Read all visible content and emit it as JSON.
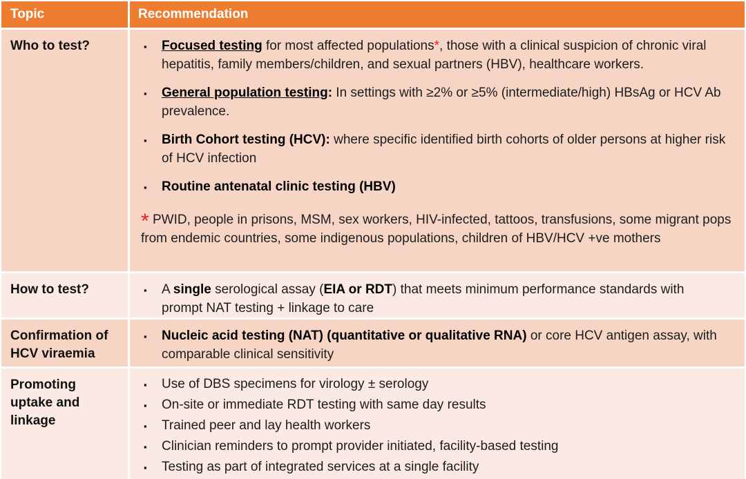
{
  "colors": {
    "header_bg": "#ED7D31",
    "header_text": "#FFFFFF",
    "band_dark": "#F7D5C5",
    "band_light": "#FBEAE4",
    "accent_red": "#E8201E"
  },
  "bullet_glyph": "▪",
  "header": {
    "topic": "Topic",
    "recommendation": "Recommendation"
  },
  "rows": [
    {
      "topic": "Who to test?",
      "bullets": [
        {
          "segments": [
            {
              "t": "Focused testing",
              "s": "bu"
            },
            {
              "t": " for most affected populations",
              "s": "n"
            },
            {
              "t": "*",
              "s": "r"
            },
            {
              "t": ", those with a clinical suspicion of chronic viral hepatitis, family members/children, and sexual partners (HBV), healthcare workers.",
              "s": "n"
            }
          ]
        },
        {
          "segments": [
            {
              "t": "General population testing",
              "s": "bu"
            },
            {
              "t": ":",
              "s": "b"
            },
            {
              "t": " In settings with ≥2% or ≥5% (intermediate/high) HBsAg  or HCV Ab prevalence.",
              "s": "n"
            }
          ]
        },
        {
          "segments": [
            {
              "t": "Birth Cohort testing (HCV):",
              "s": "b"
            },
            {
              "t": " where specific identified birth cohorts of older persons at higher risk of HCV infection",
              "s": "n"
            }
          ]
        },
        {
          "segments": [
            {
              "t": "Routine antenatal clinic testing (HBV)",
              "s": "b"
            }
          ]
        }
      ],
      "footnote": {
        "segments": [
          {
            "t": "*",
            "s": "rstar"
          },
          {
            "t": " PWID, people in prisons, MSM, sex workers, HIV-infected, tattoos, transfusions, some migrant pops from endemic countries, some indigenous populations, children of HBV/HCV +ve mothers",
            "s": "n"
          }
        ]
      }
    },
    {
      "topic": "How to test?",
      "bullets": [
        {
          "segments": [
            {
              "t": "A ",
              "s": "n"
            },
            {
              "t": "single",
              "s": "b"
            },
            {
              "t": " serological assay (",
              "s": "n"
            },
            {
              "t": "EIA or RDT",
              "s": "b"
            },
            {
              "t": ") that meets minimum performance standards with prompt NAT testing + linkage to care",
              "s": "n"
            }
          ]
        }
      ]
    },
    {
      "topic": "Confirmation of HCV viraemia",
      "bullets": [
        {
          "segments": [
            {
              "t": "Nucleic acid testing (NAT) (quantitative or qualitative RNA)",
              "s": "b"
            },
            {
              "t": " or core HCV antigen assay, with comparable clinical sensitivity",
              "s": "n"
            }
          ]
        }
      ]
    },
    {
      "topic": "Promoting uptake and linkage",
      "bullets": [
        {
          "segments": [
            {
              "t": "Use of DBS specimens for virology ± serology",
              "s": "n"
            }
          ]
        },
        {
          "segments": [
            {
              "t": "On-site or immediate RDT testing with same day results",
              "s": "n"
            }
          ]
        },
        {
          "segments": [
            {
              "t": "Trained peer and lay health workers",
              "s": "n"
            }
          ]
        },
        {
          "segments": [
            {
              "t": "Clinician reminders to prompt provider initiated, facility-based testing",
              "s": "n"
            }
          ]
        },
        {
          "segments": [
            {
              "t": "Testing as part of integrated services at a single facility",
              "s": "n"
            }
          ]
        }
      ]
    }
  ]
}
